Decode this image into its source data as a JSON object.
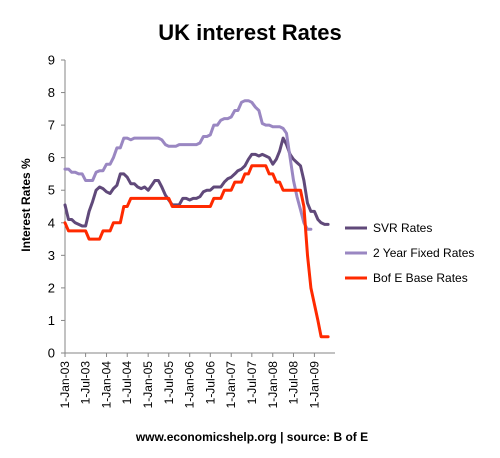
{
  "chart_data": {
    "type": "line",
    "title": "UK interest Rates",
    "ylabel": "Interest Rates %",
    "xlabel": "",
    "ylim": [
      0,
      9
    ],
    "yticks": [
      0,
      1,
      2,
      3,
      4,
      5,
      6,
      7,
      8,
      9
    ],
    "x_range": [
      "2003-01-01",
      "2009-07-01"
    ],
    "xticks": [
      {
        "date": "2003-01-01",
        "label": "1-Jan-03"
      },
      {
        "date": "2003-07-01",
        "label": "1-Jul-03"
      },
      {
        "date": "2004-01-01",
        "label": "1-Jan-04"
      },
      {
        "date": "2004-07-01",
        "label": "1-Jul-04"
      },
      {
        "date": "2005-01-01",
        "label": "1-Jan-05"
      },
      {
        "date": "2005-07-01",
        "label": "1-Jul-05"
      },
      {
        "date": "2006-01-01",
        "label": "1-Jan-06"
      },
      {
        "date": "2006-07-01",
        "label": "1-Jul-06"
      },
      {
        "date": "2007-01-01",
        "label": "1-Jan-07"
      },
      {
        "date": "2007-07-01",
        "label": "1-Jul-07"
      },
      {
        "date": "2008-01-01",
        "label": "1-Jan-08"
      },
      {
        "date": "2008-07-01",
        "label": "1-Jul-08"
      },
      {
        "date": "2009-01-01",
        "label": "1-Jan-09"
      }
    ],
    "grid": false,
    "legend_position": "right",
    "source_text": "www.economicshelp.org | source: B of E",
    "series": [
      {
        "name": "SVR Rates",
        "color": "#60497a",
        "points": [
          [
            "2003-01-01",
            4.55
          ],
          [
            "2003-02-01",
            4.1
          ],
          [
            "2003-03-01",
            4.1
          ],
          [
            "2003-04-01",
            4.0
          ],
          [
            "2003-05-01",
            3.95
          ],
          [
            "2003-06-01",
            3.9
          ],
          [
            "2003-07-01",
            3.9
          ],
          [
            "2003-08-01",
            4.35
          ],
          [
            "2003-09-01",
            4.65
          ],
          [
            "2003-10-01",
            5.0
          ],
          [
            "2003-11-01",
            5.1
          ],
          [
            "2003-12-01",
            5.05
          ],
          [
            "2004-01-01",
            4.95
          ],
          [
            "2004-02-01",
            4.9
          ],
          [
            "2004-03-01",
            5.05
          ],
          [
            "2004-04-01",
            5.15
          ],
          [
            "2004-05-01",
            5.5
          ],
          [
            "2004-06-01",
            5.5
          ],
          [
            "2004-07-01",
            5.4
          ],
          [
            "2004-08-01",
            5.2
          ],
          [
            "2004-09-01",
            5.2
          ],
          [
            "2004-10-01",
            5.1
          ],
          [
            "2004-11-01",
            5.05
          ],
          [
            "2004-12-01",
            5.1
          ],
          [
            "2005-01-01",
            5.0
          ],
          [
            "2005-02-01",
            5.15
          ],
          [
            "2005-03-01",
            5.3
          ],
          [
            "2005-04-01",
            5.3
          ],
          [
            "2005-05-01",
            5.1
          ],
          [
            "2005-06-01",
            4.85
          ],
          [
            "2005-07-01",
            4.7
          ],
          [
            "2005-08-01",
            4.55
          ],
          [
            "2005-09-01",
            4.55
          ],
          [
            "2005-10-01",
            4.55
          ],
          [
            "2005-11-01",
            4.75
          ],
          [
            "2005-12-01",
            4.75
          ],
          [
            "2006-01-01",
            4.7
          ],
          [
            "2006-02-01",
            4.75
          ],
          [
            "2006-03-01",
            4.75
          ],
          [
            "2006-04-01",
            4.8
          ],
          [
            "2006-05-01",
            4.95
          ],
          [
            "2006-06-01",
            5.0
          ],
          [
            "2006-07-01",
            5.0
          ],
          [
            "2006-08-01",
            5.1
          ],
          [
            "2006-09-01",
            5.1
          ],
          [
            "2006-10-01",
            5.1
          ],
          [
            "2006-11-01",
            5.25
          ],
          [
            "2006-12-01",
            5.35
          ],
          [
            "2007-01-01",
            5.4
          ],
          [
            "2007-02-01",
            5.5
          ],
          [
            "2007-03-01",
            5.6
          ],
          [
            "2007-04-01",
            5.65
          ],
          [
            "2007-05-01",
            5.75
          ],
          [
            "2007-06-01",
            5.95
          ],
          [
            "2007-07-01",
            6.1
          ],
          [
            "2007-08-01",
            6.1
          ],
          [
            "2007-09-01",
            6.05
          ],
          [
            "2007-10-01",
            6.1
          ],
          [
            "2007-11-01",
            6.05
          ],
          [
            "2007-12-01",
            6.0
          ],
          [
            "2008-01-01",
            5.8
          ],
          [
            "2008-02-01",
            5.95
          ],
          [
            "2008-03-01",
            6.2
          ],
          [
            "2008-04-01",
            6.6
          ],
          [
            "2008-05-01",
            6.4
          ],
          [
            "2008-06-01",
            6.1
          ],
          [
            "2008-07-01",
            5.95
          ],
          [
            "2008-08-01",
            5.85
          ],
          [
            "2008-09-01",
            5.75
          ],
          [
            "2008-10-01",
            5.3
          ],
          [
            "2008-11-01",
            4.6
          ],
          [
            "2008-12-01",
            4.35
          ],
          [
            "2009-01-01",
            4.35
          ],
          [
            "2009-02-01",
            4.1
          ],
          [
            "2009-03-01",
            4.0
          ],
          [
            "2009-04-01",
            3.95
          ],
          [
            "2009-05-01",
            3.95
          ]
        ]
      },
      {
        "name": "2 Year Fixed Rates",
        "color": "#9a87c2",
        "points": [
          [
            "2003-01-01",
            5.65
          ],
          [
            "2003-02-01",
            5.65
          ],
          [
            "2003-03-01",
            5.55
          ],
          [
            "2003-04-01",
            5.55
          ],
          [
            "2003-05-01",
            5.5
          ],
          [
            "2003-06-01",
            5.5
          ],
          [
            "2003-07-01",
            5.3
          ],
          [
            "2003-08-01",
            5.3
          ],
          [
            "2003-09-01",
            5.3
          ],
          [
            "2003-10-01",
            5.55
          ],
          [
            "2003-11-01",
            5.6
          ],
          [
            "2003-12-01",
            5.6
          ],
          [
            "2004-01-01",
            5.8
          ],
          [
            "2004-02-01",
            5.8
          ],
          [
            "2004-03-01",
            6.0
          ],
          [
            "2004-04-01",
            6.3
          ],
          [
            "2004-05-01",
            6.3
          ],
          [
            "2004-06-01",
            6.6
          ],
          [
            "2004-07-01",
            6.6
          ],
          [
            "2004-08-01",
            6.55
          ],
          [
            "2004-09-01",
            6.6
          ],
          [
            "2004-10-01",
            6.6
          ],
          [
            "2004-11-01",
            6.6
          ],
          [
            "2004-12-01",
            6.6
          ],
          [
            "2005-01-01",
            6.6
          ],
          [
            "2005-02-01",
            6.6
          ],
          [
            "2005-03-01",
            6.6
          ],
          [
            "2005-04-01",
            6.6
          ],
          [
            "2005-05-01",
            6.55
          ],
          [
            "2005-06-01",
            6.4
          ],
          [
            "2005-07-01",
            6.35
          ],
          [
            "2005-08-01",
            6.35
          ],
          [
            "2005-09-01",
            6.35
          ],
          [
            "2005-10-01",
            6.4
          ],
          [
            "2005-11-01",
            6.4
          ],
          [
            "2005-12-01",
            6.4
          ],
          [
            "2006-01-01",
            6.4
          ],
          [
            "2006-02-01",
            6.4
          ],
          [
            "2006-03-01",
            6.4
          ],
          [
            "2006-04-01",
            6.45
          ],
          [
            "2006-05-01",
            6.65
          ],
          [
            "2006-06-01",
            6.65
          ],
          [
            "2006-07-01",
            6.7
          ],
          [
            "2006-08-01",
            7.0
          ],
          [
            "2006-09-01",
            7.0
          ],
          [
            "2006-10-01",
            7.15
          ],
          [
            "2006-11-01",
            7.2
          ],
          [
            "2006-12-01",
            7.2
          ],
          [
            "2007-01-01",
            7.25
          ],
          [
            "2007-02-01",
            7.45
          ],
          [
            "2007-03-01",
            7.45
          ],
          [
            "2007-04-01",
            7.7
          ],
          [
            "2007-05-01",
            7.75
          ],
          [
            "2007-06-01",
            7.75
          ],
          [
            "2007-07-01",
            7.7
          ],
          [
            "2007-08-01",
            7.55
          ],
          [
            "2007-09-01",
            7.45
          ],
          [
            "2007-10-01",
            7.05
          ],
          [
            "2007-11-01",
            7.0
          ],
          [
            "2007-12-01",
            7.0
          ],
          [
            "2008-01-01",
            6.95
          ],
          [
            "2008-02-01",
            6.95
          ],
          [
            "2008-03-01",
            6.95
          ],
          [
            "2008-04-01",
            6.9
          ],
          [
            "2008-05-01",
            6.75
          ],
          [
            "2008-06-01",
            6.0
          ],
          [
            "2008-07-01",
            5.3
          ],
          [
            "2008-08-01",
            4.8
          ],
          [
            "2008-09-01",
            4.4
          ],
          [
            "2008-10-01",
            4.0
          ],
          [
            "2008-11-01",
            3.8
          ],
          [
            "2008-12-01",
            3.8
          ]
        ]
      },
      {
        "name": "Bof E Base Rates",
        "color": "#ff2a00",
        "points": [
          [
            "2003-01-01",
            4.0
          ],
          [
            "2003-02-01",
            3.75
          ],
          [
            "2003-07-01",
            3.75
          ],
          [
            "2003-08-01",
            3.5
          ],
          [
            "2003-11-01",
            3.5
          ],
          [
            "2003-12-01",
            3.75
          ],
          [
            "2004-02-01",
            3.75
          ],
          [
            "2004-03-01",
            4.0
          ],
          [
            "2004-05-01",
            4.0
          ],
          [
            "2004-06-01",
            4.5
          ],
          [
            "2004-07-01",
            4.5
          ],
          [
            "2004-08-01",
            4.75
          ],
          [
            "2005-07-01",
            4.75
          ],
          [
            "2005-08-01",
            4.5
          ],
          [
            "2006-07-01",
            4.5
          ],
          [
            "2006-08-01",
            4.75
          ],
          [
            "2006-10-01",
            4.75
          ],
          [
            "2006-11-01",
            5.0
          ],
          [
            "2007-01-01",
            5.0
          ],
          [
            "2007-02-01",
            5.25
          ],
          [
            "2007-04-01",
            5.25
          ],
          [
            "2007-05-01",
            5.5
          ],
          [
            "2007-06-01",
            5.5
          ],
          [
            "2007-07-01",
            5.75
          ],
          [
            "2007-11-01",
            5.75
          ],
          [
            "2007-12-01",
            5.5
          ],
          [
            "2008-01-01",
            5.5
          ],
          [
            "2008-02-01",
            5.25
          ],
          [
            "2008-03-01",
            5.25
          ],
          [
            "2008-04-01",
            5.0
          ],
          [
            "2008-09-01",
            5.0
          ],
          [
            "2008-10-01",
            4.5
          ],
          [
            "2008-11-01",
            3.0
          ],
          [
            "2008-12-01",
            2.0
          ],
          [
            "2009-01-01",
            1.5
          ],
          [
            "2009-02-01",
            1.0
          ],
          [
            "2009-03-01",
            0.5
          ],
          [
            "2009-05-01",
            0.5
          ]
        ]
      }
    ]
  }
}
